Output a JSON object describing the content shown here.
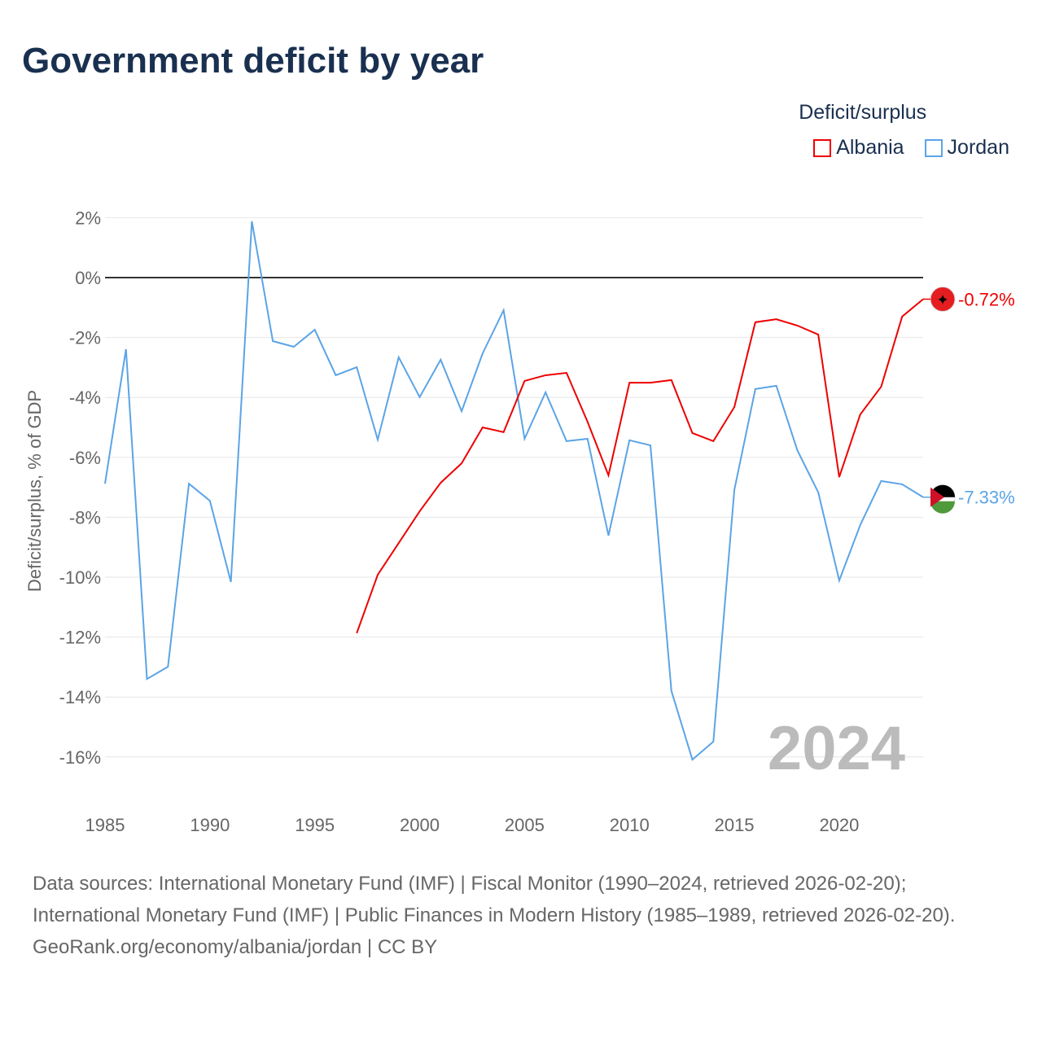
{
  "title": "Government deficit by year",
  "legend": {
    "title": "Deficit/surplus",
    "items": [
      "Albania",
      "Jordan"
    ]
  },
  "year_label": "2024",
  "end_labels": {
    "albania": "-0.72%",
    "jordan": "-7.33%"
  },
  "sources": {
    "line1": "Data sources: International Monetary Fund (IMF) | Fiscal Monitor (1990–2024, retrieved 2026-02-20);",
    "line2": "International Monetary Fund (IMF) | Public Finances in Modern History (1985–1989, retrieved 2026-02-20).",
    "line3": "GeoRank.org/economy/albania/jordan | CC BY"
  },
  "chart_data": {
    "type": "line",
    "title": "Government deficit by year",
    "xlabel": "",
    "ylabel": "Deficit/surplus, % of GDP",
    "xlim": [
      1985,
      2024
    ],
    "ylim": [
      -16,
      2
    ],
    "xticks": [
      1985,
      1990,
      1995,
      2000,
      2005,
      2010,
      2015,
      2020
    ],
    "yticks": [
      2,
      0,
      -2,
      -4,
      -6,
      -8,
      -10,
      -12,
      -14,
      -16
    ],
    "colors": {
      "Albania": "#ee0000",
      "Jordan": "#5ba4e6"
    },
    "series": [
      {
        "name": "Jordan",
        "start": 1985,
        "values": [
          -6.88,
          -2.39,
          -13.4,
          -12.99,
          -6.88,
          -7.45,
          -10.16,
          1.88,
          -2.12,
          -2.31,
          -1.74,
          -3.26,
          -2.99,
          -5.41,
          -2.66,
          -3.99,
          -2.74,
          -4.46,
          -2.53,
          -1.09,
          -5.38,
          -3.83,
          -5.46,
          -5.38,
          -8.61,
          -5.43,
          -5.6,
          -13.8,
          -16.09,
          -15.49,
          -7.09,
          -3.72,
          -3.61,
          -5.76,
          -7.17,
          -10.11,
          -8.26,
          -6.79,
          -6.9,
          -7.33
        ]
      },
      {
        "name": "Albania",
        "start": 1997,
        "values": [
          -11.87,
          -9.92,
          -8.86,
          -7.8,
          -6.85,
          -6.2,
          -5.0,
          -5.16,
          -3.45,
          -3.26,
          -3.18,
          -4.81,
          -6.6,
          -3.51,
          -3.51,
          -3.42,
          -5.19,
          -5.46,
          -4.32,
          -1.49,
          -1.39,
          -1.6,
          -1.9,
          -6.66,
          -4.57,
          -3.64,
          -1.3,
          -0.72
        ]
      }
    ]
  }
}
